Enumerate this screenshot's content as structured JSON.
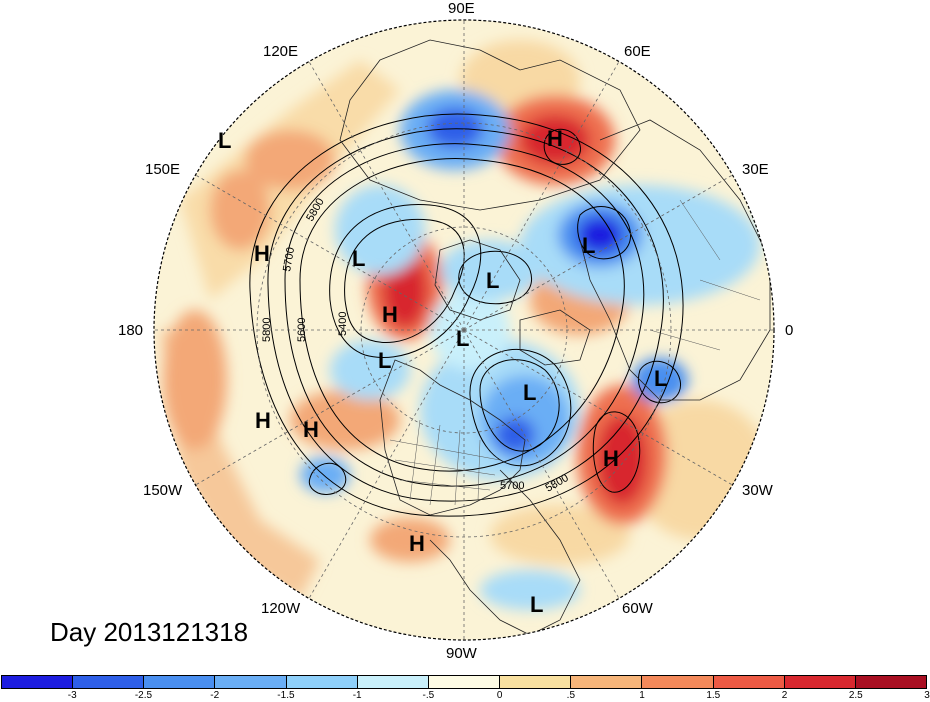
{
  "day_label": "Day 2013121318",
  "longitude_labels": [
    "90E",
    "60E",
    "30E",
    "0",
    "30W",
    "60W",
    "90W",
    "120W",
    "150W",
    "180",
    "150E",
    "120E"
  ],
  "contour_labels": [
    "5800",
    "5700",
    "5600",
    "5400",
    "5800",
    "5700",
    "5800"
  ],
  "pressure_centers": [
    "L",
    "H",
    "L",
    "H",
    "L",
    "L",
    "H",
    "L",
    "L",
    "L",
    "L",
    "H",
    "H",
    "H",
    "L",
    "H"
  ],
  "colorbar": {
    "colors": [
      "#1d1de0",
      "#2e5fe8",
      "#4a8ff0",
      "#6aaef5",
      "#8fd0fa",
      "#c9f0fb",
      "#fdfbe4",
      "#f8e0a0",
      "#f6b57a",
      "#f3895a",
      "#ed5a44",
      "#d8282f",
      "#a90f22"
    ],
    "tick_labels": [
      "-3",
      "-2.5",
      "-2",
      "-1.5",
      "-1",
      "-.5",
      "0",
      ".5",
      "1",
      "1.5",
      "2",
      "2.5",
      "3"
    ]
  }
}
